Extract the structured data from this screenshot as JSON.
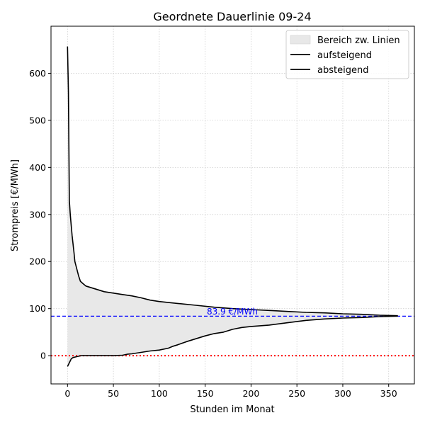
{
  "chart_data": {
    "type": "area",
    "title": "Geordnete Dauerlinie 09-24",
    "xlabel": "Stunden im Monat",
    "ylabel": "Strompreis [€/MWh]",
    "xlim": [
      -18,
      378
    ],
    "ylim": [
      -60,
      700
    ],
    "xticks": [
      0,
      50,
      100,
      150,
      200,
      250,
      300,
      350
    ],
    "yticks": [
      0,
      100,
      200,
      300,
      400,
      500,
      600
    ],
    "grid": true,
    "legend_position": "top-right",
    "legend": [
      "Bereich zw. Linien",
      "aufsteigend",
      "absteigend"
    ],
    "series": [
      {
        "name": "aufsteigend",
        "color": "#000000",
        "x": [
          0,
          2,
          4,
          6,
          10,
          15,
          20,
          30,
          40,
          50,
          60,
          65,
          70,
          80,
          90,
          100,
          110,
          115,
          120,
          130,
          140,
          150,
          160,
          170,
          180,
          190,
          200,
          220,
          240,
          260,
          280,
          300,
          320,
          340,
          360
        ],
        "y": [
          -23,
          -15,
          -7,
          -4,
          -2,
          0,
          0,
          0,
          0,
          0,
          1,
          3,
          4,
          7,
          10,
          12,
          16,
          20,
          23,
          30,
          36,
          42,
          47,
          50,
          56,
          60,
          62,
          65,
          70,
          75,
          78,
          80,
          81,
          83,
          84
        ]
      },
      {
        "name": "absteigend",
        "color": "#000000",
        "x": [
          0,
          1,
          2,
          3,
          5,
          7,
          8,
          10,
          12,
          14,
          17,
          20,
          25,
          30,
          40,
          50,
          60,
          70,
          80,
          90,
          100,
          120,
          140,
          160,
          180,
          200,
          220,
          240,
          260,
          280,
          300,
          320,
          340,
          360
        ],
        "y": [
          657,
          560,
          330,
          300,
          255,
          220,
          200,
          185,
          170,
          158,
          153,
          148,
          145,
          142,
          136,
          133,
          130,
          127,
          123,
          118,
          115,
          111,
          107,
          103,
          100,
          98,
          96,
          94,
          92,
          91,
          89,
          88,
          86,
          85
        ]
      }
    ],
    "fill_between": {
      "label": "Bereich zw. Linien",
      "color": "#e8e8e8"
    },
    "hlines": [
      {
        "y": 83.9,
        "label": "83.9 €/MWh",
        "color": "#0000ff",
        "style": "dashed"
      },
      {
        "y": 0,
        "label": "",
        "color": "#ff0000",
        "style": "dotted"
      }
    ]
  }
}
